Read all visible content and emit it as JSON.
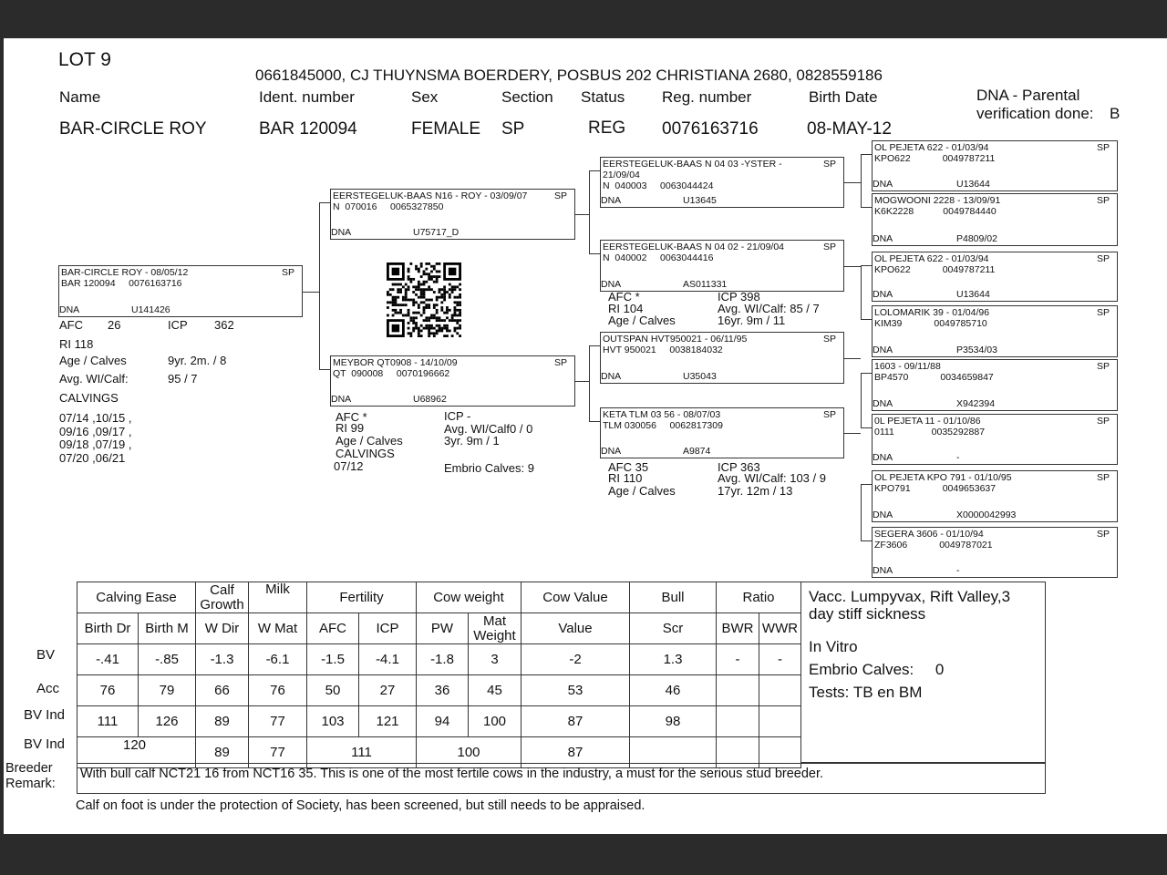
{
  "lot": "LOT 9",
  "owner": "0661845000, CJ THUYNSMA BOERDERY, POSBUS 202 CHRISTIANA 2680, 0828559186",
  "headers": {
    "name": "Name",
    "ident": "Ident. number",
    "sex": "Sex",
    "section": "Section",
    "status": "Status",
    "reg": "Reg. number",
    "birth": "Birth Date",
    "dna_line1": "DNA - Parental",
    "dna_line2": "verification done:"
  },
  "values": {
    "name": "BAR-CIRCLE ROY",
    "ident": "BAR 120094",
    "sex": "FEMALE",
    "section": "SP",
    "status": "REG",
    "reg": "0076163716",
    "birth": "08-MAY-12",
    "dna": "B"
  },
  "animals": [
    {
      "name": "BAR-CIRCLE ROY - 08/05/12",
      "section": "SP",
      "ident": "BAR 120094     0076163716",
      "dna_label": "DNA",
      "dna": "U141426"
    },
    {
      "name": "EERSTEGELUK-BAAS N16 - ROY - 03/09/07",
      "section": "SP",
      "ident": "N  070016     0065327850",
      "dna_label": "DNA",
      "dna": "U75717_D"
    },
    {
      "name": "MEYBOR QT0908 - 14/10/09",
      "section": "SP",
      "ident": "QT  090008     0070196662",
      "dna_label": "DNA",
      "dna": "U68962"
    },
    {
      "name": "EERSTEGELUK-BAAS N 04 03 -YSTER - 21/09/04",
      "section": "SP",
      "ident": "N  040003     0063044424",
      "dna_label": "DNA",
      "dna": "U13645"
    },
    {
      "name": "EERSTEGELUK-BAAS N 04 02 - 21/09/04",
      "section": "SP",
      "ident": "N  040002     0063044416",
      "dna_label": "DNA",
      "dna": "AS011331"
    },
    {
      "name": "OUTSPAN HVT950021 - 06/11/95",
      "section": "SP",
      "ident": "HVT 950021     0038184032",
      "dna_label": "DNA",
      "dna": "U35043"
    },
    {
      "name": "KETA TLM 03 56 - 08/07/03",
      "section": "SP",
      "ident": "TLM 030056     0062817309",
      "dna_label": "DNA",
      "dna": "A9874"
    },
    {
      "name": "OL PEJETA 622 - 01/03/94",
      "section": "SP",
      "ident": "KPO622            0049787211",
      "dna_label": "DNA",
      "dna": "U13644"
    },
    {
      "name": "MOGWOONI 2228 - 13/09/91",
      "section": "SP",
      "ident": "K6K2228           0049784440",
      "dna_label": "DNA",
      "dna": "P4809/02"
    },
    {
      "name": "OL PEJETA 622 - 01/03/94",
      "section": "SP",
      "ident": "KPO622            0049787211",
      "dna_label": "DNA",
      "dna": "U13644"
    },
    {
      "name": "LOLOMARIK 39 - 01/04/96",
      "section": "SP",
      "ident": "KIM39            0049785710",
      "dna_label": "DNA",
      "dna": "P3534/03"
    },
    {
      "name": "1603 - 09/11/88",
      "section": "SP",
      "ident": "BP4570            0034659847",
      "dna_label": "DNA",
      "dna": "X942394"
    },
    {
      "name": "0L PEJETA 11 - 01/10/86",
      "section": "SP",
      "ident": "0111              0035292887",
      "dna_label": "DNA",
      "dna": "-"
    },
    {
      "name": "OL PEJETA KPO 791 - 01/10/95",
      "section": "SP",
      "ident": "KPO791            0049653637",
      "dna_label": "DNA",
      "dna": "X0000042993"
    },
    {
      "name": "SEGERA 3606 - 01/10/94",
      "section": "SP",
      "ident": "ZF3606            0049787021",
      "dna_label": "DNA",
      "dna": "-"
    }
  ],
  "subject_stats": {
    "afc_l": "AFC",
    "afc": "26",
    "icp_l": "ICP",
    "icp": "362",
    "ri": "RI  118",
    "age_l": "Age / Calves",
    "age": "9yr. 2m.  / 8",
    "wi_l": "Avg. WI/Calf:",
    "wi": "95 / 7",
    "calvings": "CALVINGS",
    "c1": "07/14 ,10/15 ,",
    "c2": "09/16 ,09/17 ,",
    "c3": "09/18 ,07/19 ,",
    "c4": "07/20 ,06/21"
  },
  "dam_stats": {
    "afc": "AFC        *",
    "ri": "RI   99",
    "age": "Age / Calves",
    "calvings": "CALVINGS",
    "cdate": "07/12",
    "icp": "ICP        -",
    "wi": "Avg. WI/Calf0 / 0",
    "agev": "3yr. 9m  / 1",
    "embrio": "Embrio Calves: 9"
  },
  "sd_stats": {
    "afc": "AFC        *",
    "ri": "RI      104",
    "age": "Age / Calves",
    "icp": "ICP        398",
    "wi": "Avg. WI/Calf:  85 / 7",
    "agev": "16yr. 9m  / 11"
  },
  "dd_stats": {
    "afc": "AFC        35",
    "ri": "RI          110",
    "age": "Age / Calves",
    "icp": "ICP        363",
    "wi": "Avg. WI/Calf:  103 / 9",
    "agev": "17yr. 12m  / 13"
  },
  "table": {
    "groups": [
      "Calving Ease",
      "Calf Growth",
      "Milk",
      "Fertility",
      "Cow weight",
      "Cow Value",
      "Bull",
      "Ratio"
    ],
    "cols": [
      "Birth Dr",
      "Birth M",
      "W Dir",
      "W Mat",
      "AFC",
      "ICP",
      "PW",
      "Mat Weight",
      "Value",
      "Scr",
      "BWR",
      "WWR"
    ],
    "row_labels": [
      "BV",
      "Acc",
      "BV Ind",
      "BV Ind"
    ],
    "bv": [
      "-.41",
      "-.85",
      "-1.3",
      "-6.1",
      "-1.5",
      "-4.1",
      "-1.8",
      "3",
      "-2",
      "1.3",
      "-",
      "-"
    ],
    "acc": [
      "76",
      "79",
      "66",
      "76",
      "50",
      "27",
      "36",
      "45",
      "53",
      "46",
      "",
      ""
    ],
    "bvind": [
      "111",
      "126",
      "89",
      "77",
      "103",
      "121",
      "94",
      "100",
      "87",
      "98",
      "",
      ""
    ],
    "bvind2": [
      "120",
      "89",
      "77",
      "111",
      "100",
      "87"
    ]
  },
  "notes": {
    "vacc": "Vacc. Lumpyvax, Rift Valley,3 day stiff sickness",
    "invitro": "In Vitro",
    "embrio": "Embrio Calves:     0",
    "tests": "Tests: TB en BM"
  },
  "breeder_label": "Breeder Remark:",
  "remark": "With bull calf NCT21 16 from NCT16 35. This is one of the most fertile cows in the industry, a must for the serious stud breeder.",
  "footer": "Calf on foot is under the protection of Society, has been screened, but still needs to be appraised."
}
